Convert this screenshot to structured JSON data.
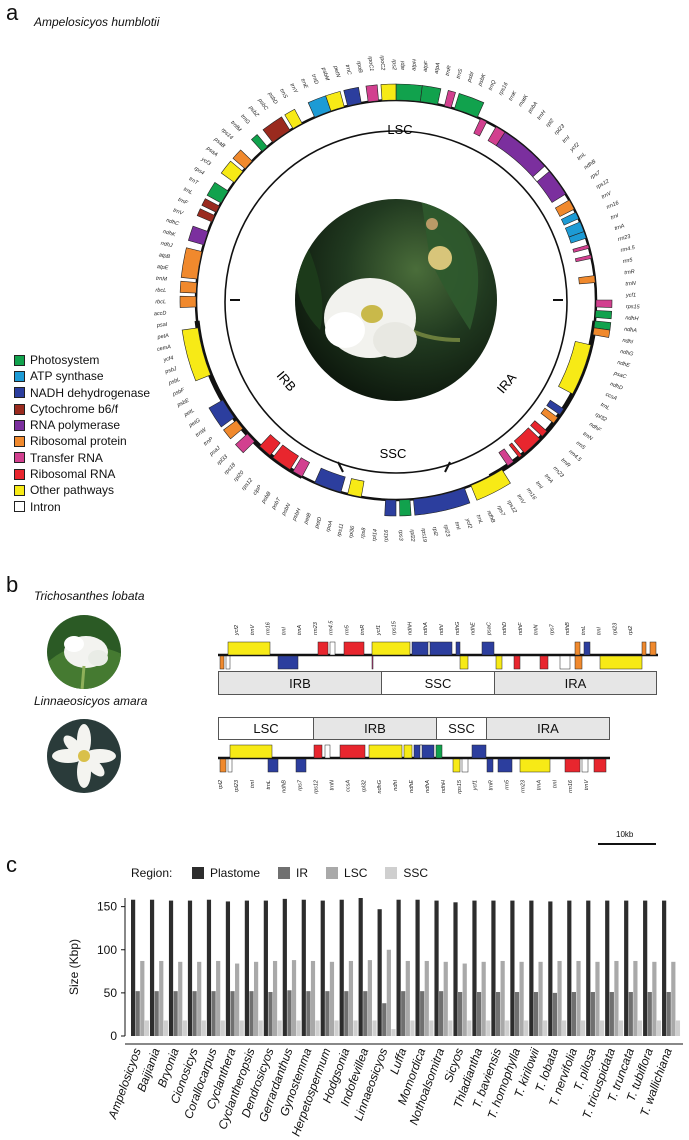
{
  "panel_a": {
    "letter": "a",
    "species": "Ampelosicyos humblotii",
    "ring_labels": [
      "LSC",
      "IRA",
      "SSC",
      "IRB"
    ],
    "gene_labels_outer": [
      "rbcL",
      "trnM",
      "atpE",
      "atpB",
      "ndhJ",
      "ndhK",
      "ndhC",
      "trnV",
      "trnF",
      "trnL",
      "trnT",
      "rps4",
      "ycf3",
      "psaA",
      "psaB",
      "rps14",
      "trnfM",
      "trnG",
      "psbZ",
      "psbC",
      "psbD",
      "trnS",
      "trnY",
      "trnE",
      "trnD",
      "psbM",
      "petN",
      "trnC",
      "rpoB",
      "rpoC1",
      "rpoC2",
      "rps2",
      "atpI",
      "atpH",
      "atpF",
      "atpA",
      "trnR",
      "trnS",
      "psbI",
      "psbK",
      "trnQ",
      "rps16",
      "trnK",
      "matK",
      "psbA",
      "trnH",
      "rpl2",
      "rpl23",
      "trnI",
      "ycf2",
      "trnL",
      "ndhB",
      "rps7",
      "rps12",
      "trnV",
      "rrn16",
      "trnI",
      "trnA",
      "rrn23",
      "rrn4.5",
      "rrn5",
      "trnR",
      "trnN",
      "ycf1",
      "rps15",
      "ndhH",
      "ndhA",
      "ndhI",
      "ndhG",
      "ndhE",
      "psaC",
      "ndhD",
      "ccsA",
      "trnL",
      "rpl32",
      "ndhF",
      "trnN",
      "rrn5",
      "rrn4.5",
      "trnR",
      "rrn23",
      "trnA",
      "trnI",
      "rrn16",
      "trnV",
      "rps12",
      "rps7",
      "ndhB",
      "trnL",
      "ycf2",
      "trnI",
      "rpl23",
      "rpl2",
      "rps19",
      "rpl22",
      "rps3",
      "rpl16",
      "rpl14",
      "rps8",
      "rpl36",
      "rps11",
      "rpoA",
      "petD",
      "petB",
      "psbH",
      "psbN",
      "psbT",
      "psbB",
      "clpP",
      "rps12",
      "rpl20",
      "rps18",
      "rpl33",
      "psaJ",
      "trnP",
      "trnW",
      "petG",
      "petL",
      "psbE",
      "psbF",
      "psbL",
      "psbJ",
      "ycf4",
      "cemA",
      "petA",
      "psaI",
      "accD",
      "rbcL"
    ],
    "legend": [
      {
        "label": "Photosystem",
        "color": "#11a24d"
      },
      {
        "label": "ATP synthase",
        "color": "#1d9bd5"
      },
      {
        "label": "NADH dehydrogenase",
        "color": "#2c3e9e"
      },
      {
        "label": "Cytochrome b6/f",
        "color": "#9a2a1e"
      },
      {
        "label": "RNA polymerase",
        "color": "#7b2f9e"
      },
      {
        "label": "Ribosomal protein",
        "color": "#f0892d"
      },
      {
        "label": "Transfer RNA",
        "color": "#d2408f"
      },
      {
        "label": "Ribosomal RNA",
        "color": "#e8262e"
      },
      {
        "label": "Other pathways",
        "color": "#f7ea16"
      },
      {
        "label": "Intron",
        "color": "#ffffff"
      }
    ]
  },
  "panel_b": {
    "letter": "b",
    "species_1": "Trichosanthes lobata",
    "species_2": "Linnaeosicyos amara",
    "regions_1": [
      "IRB",
      "SSC",
      "IRA"
    ],
    "regions_2": [
      "LSC",
      "IRB",
      "SSC",
      "IRA"
    ],
    "gene_labels_1_top": [
      "ycf2",
      "trnV",
      "rrn16",
      "trnI",
      "trnA",
      "rrn23",
      "rrn4.5",
      "rrn5",
      "trnR",
      "ycf1",
      "rps15",
      "ndhH",
      "ndhA",
      "ndhI",
      "ndhG",
      "ndhE",
      "psaC",
      "ndhD",
      "ndhF",
      "trnN",
      "rps7",
      "ndhB",
      "trnL",
      "trnI",
      "rpl23",
      "rpl2"
    ],
    "gene_labels_2_bottom": [
      "rpl2",
      "rpl23",
      "trnI",
      "trnL",
      "ndhB",
      "rps7",
      "rps12",
      "trnN",
      "ccsA",
      "rpl32",
      "ndhG",
      "ndhI",
      "ndhE",
      "ndhA",
      "ndhH",
      "rps15",
      "ycf1",
      "trnR",
      "rrn5",
      "rrn23",
      "trnA",
      "trnI",
      "rrn16",
      "trnV"
    ],
    "scale_label": "10kb"
  },
  "panel_c": {
    "letter": "c",
    "region_label": "Region:",
    "legend": [
      {
        "name": "Plastome",
        "color": "#2d2d2d"
      },
      {
        "name": "IR",
        "color": "#707070"
      },
      {
        "name": "LSC",
        "color": "#a9a9a9"
      },
      {
        "name": "SSC",
        "color": "#cfcfcf"
      }
    ]
  },
  "chart_data": {
    "type": "bar",
    "title": "",
    "xlabel": "",
    "ylabel": "Size (Kbp)",
    "ylim": [
      0,
      160
    ],
    "yticks": [
      0,
      50,
      100,
      150
    ],
    "grid": false,
    "legend_position": "top",
    "categories": [
      "Ampelosicyos",
      "Baijiania",
      "Bryonia",
      "Cionosicys",
      "Corallocarpus",
      "Cyclanthera",
      "Cyclantheropsis",
      "Dendrosicyos",
      "Gerrardanthus",
      "Gynostemma",
      "Herpetospermum",
      "Hodgsonia",
      "Indofevillea",
      "Linnaeosicyos",
      "Luffa",
      "Momordica",
      "Nothoalsomitra",
      "Sicyos",
      "Thladiantha",
      "T. baviensis",
      "T. homophylla",
      "T. kirilowii",
      "T. lobata",
      "T. nervifolia",
      "T. pilosa",
      "T. tricuspidata",
      "T. truncata",
      "T. tubiflora",
      "T. wallichiana"
    ],
    "series": [
      {
        "name": "Plastome",
        "values": [
          158,
          158,
          157,
          157,
          158,
          156,
          157,
          157,
          159,
          158,
          157,
          158,
          160,
          147,
          158,
          158,
          157,
          155,
          157,
          157,
          157,
          157,
          156,
          157,
          157,
          157,
          157,
          157,
          157
        ]
      },
      {
        "name": "IR",
        "values": [
          52,
          52,
          52,
          52,
          52,
          52,
          52,
          51,
          53,
          52,
          52,
          52,
          52,
          38,
          52,
          52,
          52,
          51,
          51,
          51,
          51,
          51,
          50,
          51,
          51,
          51,
          51,
          51,
          51
        ]
      },
      {
        "name": "LSC",
        "values": [
          87,
          87,
          86,
          86,
          87,
          84,
          86,
          87,
          88,
          87,
          86,
          87,
          88,
          100,
          87,
          87,
          86,
          84,
          86,
          87,
          86,
          86,
          87,
          87,
          86,
          87,
          87,
          86,
          86
        ]
      },
      {
        "name": "SSC",
        "values": [
          18,
          18,
          18,
          18,
          18,
          18,
          18,
          18,
          18,
          18,
          18,
          18,
          18,
          8,
          18,
          18,
          18,
          18,
          18,
          18,
          18,
          18,
          18,
          18,
          18,
          18,
          18,
          18,
          18
        ]
      }
    ]
  }
}
